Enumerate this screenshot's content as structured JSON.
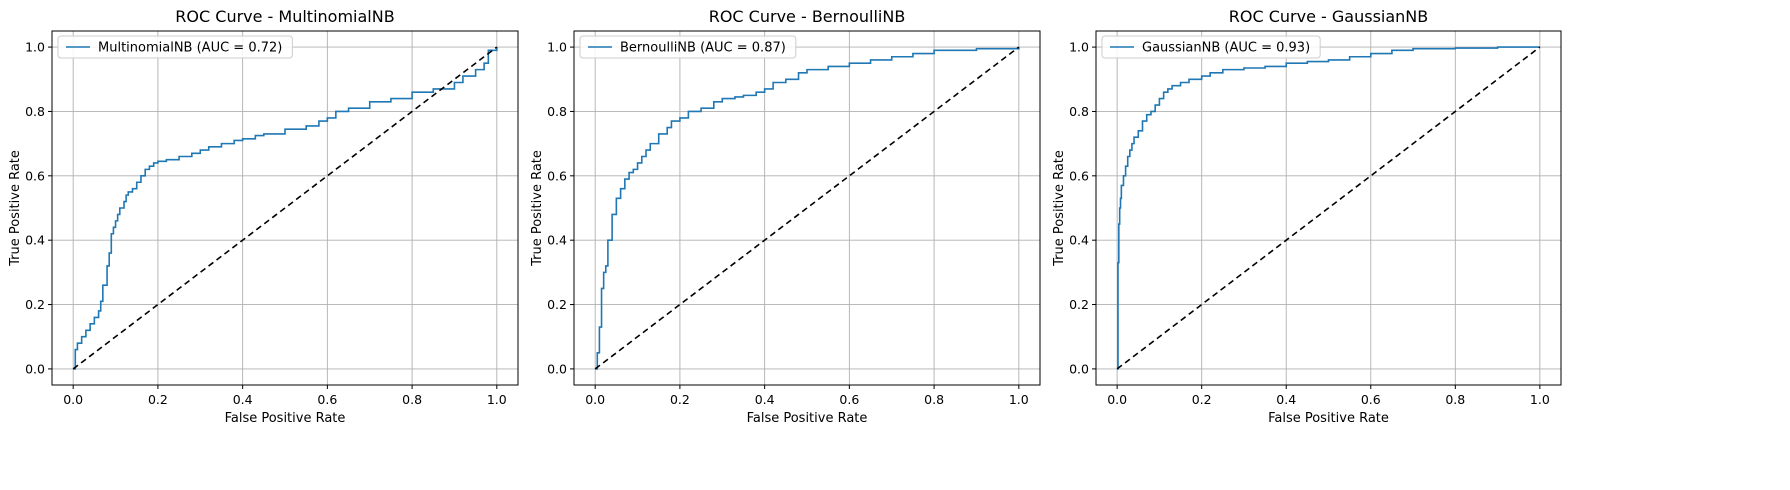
{
  "chart_data": [
    {
      "type": "line",
      "title": "ROC Curve - MultinomialNB",
      "xlabel": "False Positive Rate",
      "ylabel": "True Positive Rate",
      "xlim": [
        -0.05,
        1.05
      ],
      "ylim": [
        -0.05,
        1.05
      ],
      "xticks": [
        "0.0",
        "0.2",
        "0.4",
        "0.6",
        "0.8",
        "1.0"
      ],
      "yticks": [
        "0.0",
        "0.2",
        "0.4",
        "0.6",
        "0.8",
        "1.0"
      ],
      "grid": true,
      "legend_position": "top-left",
      "series": [
        {
          "name": "MultinomialNB (AUC = 0.72)",
          "color": "#1f77b4",
          "style": "solid",
          "step": true,
          "x": [
            0,
            0.005,
            0.01,
            0.02,
            0.03,
            0.04,
            0.05,
            0.06,
            0.065,
            0.07,
            0.08,
            0.085,
            0.09,
            0.095,
            0.1,
            0.105,
            0.11,
            0.12,
            0.125,
            0.13,
            0.14,
            0.15,
            0.16,
            0.17,
            0.18,
            0.19,
            0.2,
            0.22,
            0.25,
            0.28,
            0.3,
            0.32,
            0.35,
            0.38,
            0.4,
            0.43,
            0.45,
            0.5,
            0.55,
            0.58,
            0.6,
            0.62,
            0.65,
            0.7,
            0.75,
            0.8,
            0.85,
            0.9,
            0.92,
            0.95,
            0.97,
            0.98,
            1.0
          ],
          "y": [
            0,
            0.06,
            0.08,
            0.1,
            0.12,
            0.14,
            0.16,
            0.18,
            0.21,
            0.26,
            0.32,
            0.36,
            0.42,
            0.44,
            0.46,
            0.48,
            0.5,
            0.52,
            0.54,
            0.55,
            0.56,
            0.58,
            0.6,
            0.62,
            0.63,
            0.64,
            0.645,
            0.65,
            0.66,
            0.67,
            0.68,
            0.69,
            0.7,
            0.71,
            0.715,
            0.725,
            0.73,
            0.745,
            0.755,
            0.77,
            0.78,
            0.8,
            0.81,
            0.83,
            0.84,
            0.86,
            0.87,
            0.89,
            0.91,
            0.93,
            0.95,
            0.99,
            1.0
          ]
        },
        {
          "name": "",
          "color": "#000000",
          "style": "dashed",
          "x": [
            0,
            1
          ],
          "y": [
            0,
            1
          ]
        }
      ]
    },
    {
      "type": "line",
      "title": "ROC Curve - BernoulliNB",
      "xlabel": "False Positive Rate",
      "ylabel": "True Positive Rate",
      "xlim": [
        -0.05,
        1.05
      ],
      "ylim": [
        -0.05,
        1.05
      ],
      "xticks": [
        "0.0",
        "0.2",
        "0.4",
        "0.6",
        "0.8",
        "1.0"
      ],
      "yticks": [
        "0.0",
        "0.2",
        "0.4",
        "0.6",
        "0.8",
        "1.0"
      ],
      "grid": true,
      "legend_position": "top-left",
      "series": [
        {
          "name": "BernoulliNB (AUC = 0.87)",
          "color": "#1f77b4",
          "style": "solid",
          "step": true,
          "x": [
            0,
            0.005,
            0.01,
            0.015,
            0.02,
            0.025,
            0.03,
            0.04,
            0.05,
            0.06,
            0.07,
            0.08,
            0.09,
            0.1,
            0.11,
            0.12,
            0.13,
            0.15,
            0.17,
            0.18,
            0.2,
            0.22,
            0.25,
            0.28,
            0.3,
            0.33,
            0.35,
            0.38,
            0.4,
            0.42,
            0.45,
            0.48,
            0.5,
            0.55,
            0.6,
            0.65,
            0.7,
            0.75,
            0.8,
            0.9,
            1.0
          ],
          "y": [
            0,
            0.05,
            0.13,
            0.25,
            0.3,
            0.32,
            0.4,
            0.48,
            0.53,
            0.56,
            0.59,
            0.61,
            0.62,
            0.64,
            0.66,
            0.68,
            0.7,
            0.73,
            0.75,
            0.77,
            0.78,
            0.8,
            0.81,
            0.83,
            0.84,
            0.845,
            0.85,
            0.86,
            0.87,
            0.89,
            0.9,
            0.92,
            0.93,
            0.94,
            0.95,
            0.96,
            0.97,
            0.98,
            0.99,
            0.995,
            1.0
          ]
        },
        {
          "name": "",
          "color": "#000000",
          "style": "dashed",
          "x": [
            0,
            1
          ],
          "y": [
            0,
            1
          ]
        }
      ]
    },
    {
      "type": "line",
      "title": "ROC Curve - GaussianNB",
      "xlabel": "False Positive Rate",
      "ylabel": "True Positive Rate",
      "xlim": [
        -0.05,
        1.05
      ],
      "ylim": [
        -0.05,
        1.05
      ],
      "xticks": [
        "0.0",
        "0.2",
        "0.4",
        "0.6",
        "0.8",
        "1.0"
      ],
      "yticks": [
        "0.0",
        "0.2",
        "0.4",
        "0.6",
        "0.8",
        "1.0"
      ],
      "grid": true,
      "legend_position": "top-left",
      "series": [
        {
          "name": "GaussianNB (AUC = 0.93)",
          "color": "#1f77b4",
          "style": "solid",
          "step": true,
          "x": [
            0,
            0.002,
            0.004,
            0.006,
            0.008,
            0.01,
            0.015,
            0.02,
            0.025,
            0.03,
            0.035,
            0.04,
            0.05,
            0.06,
            0.07,
            0.08,
            0.09,
            0.1,
            0.11,
            0.12,
            0.13,
            0.15,
            0.17,
            0.2,
            0.22,
            0.25,
            0.3,
            0.35,
            0.4,
            0.45,
            0.5,
            0.55,
            0.6,
            0.65,
            0.7,
            0.8,
            0.9,
            1.0
          ],
          "y": [
            0,
            0.33,
            0.45,
            0.5,
            0.53,
            0.57,
            0.6,
            0.63,
            0.66,
            0.68,
            0.7,
            0.72,
            0.74,
            0.77,
            0.79,
            0.8,
            0.82,
            0.84,
            0.86,
            0.87,
            0.88,
            0.89,
            0.9,
            0.91,
            0.92,
            0.93,
            0.935,
            0.94,
            0.95,
            0.955,
            0.96,
            0.97,
            0.98,
            0.99,
            0.995,
            0.997,
            1.0,
            1.0
          ]
        },
        {
          "name": "",
          "color": "#000000",
          "style": "dashed",
          "x": [
            0,
            1
          ],
          "y": [
            0,
            1
          ]
        }
      ]
    }
  ],
  "colors": {
    "axes": "#000000",
    "grid": "#b0b0b0",
    "background": "#ffffff",
    "legend_border": "#cccccc"
  }
}
